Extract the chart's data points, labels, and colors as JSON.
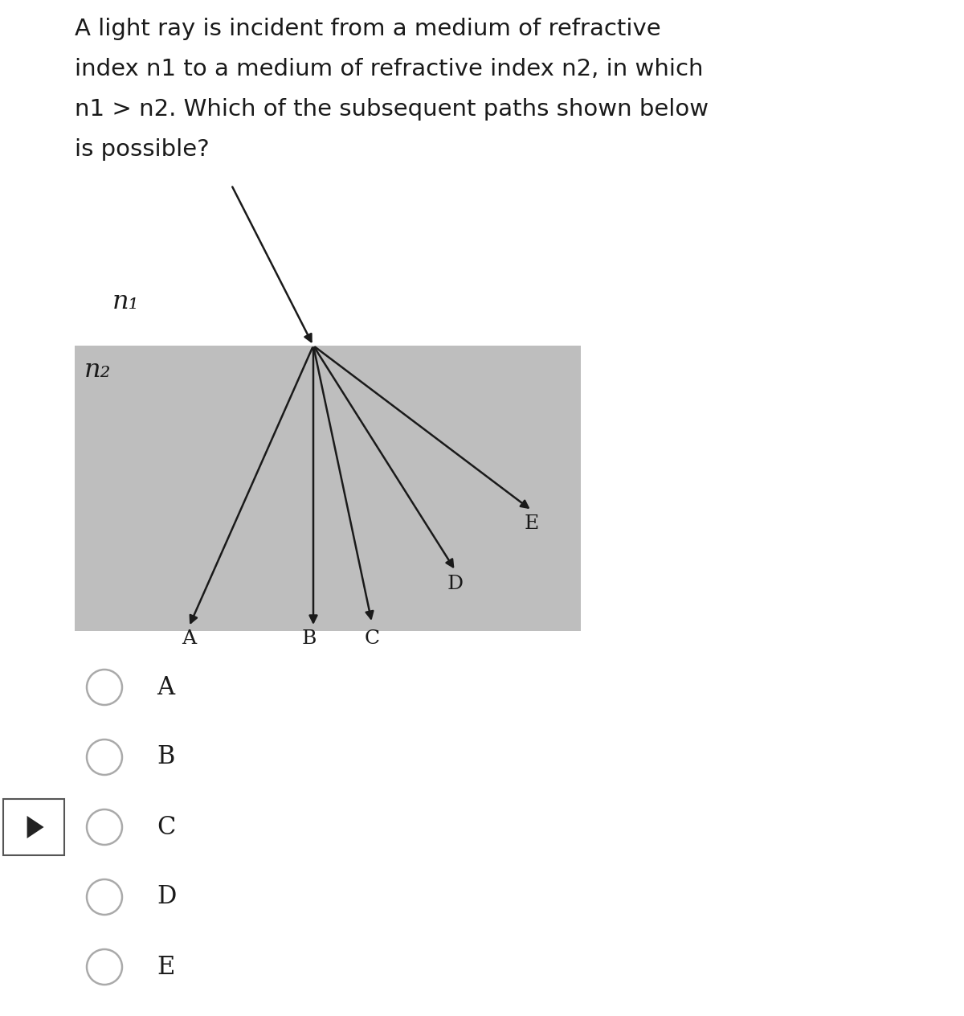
{
  "title_lines": [
    "A light ray is incident from a medium of refractive",
    "index n1 to a medium of refractive index n2, in which",
    "n1 > n2. Which of the subsequent paths shown below",
    "is possible?"
  ],
  "title_fontsize": 21,
  "background_color": "#ffffff",
  "gray_box_color": "#bebebe",
  "n1_label": "n₁",
  "n2_label": "n₂",
  "arrow_color": "#1a1a1a",
  "text_color": "#1a1a1a",
  "label_fontsize": 18,
  "choice_fontsize": 22,
  "choices": [
    "A",
    "B",
    "C",
    "D",
    "E"
  ]
}
